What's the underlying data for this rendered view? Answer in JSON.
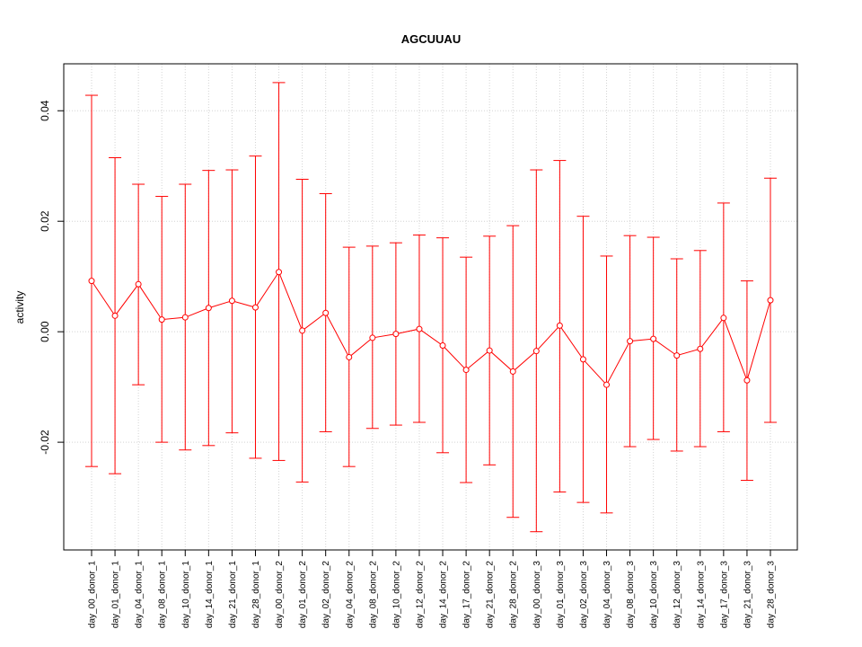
{
  "chart_data": {
    "type": "line",
    "title": "AGCUUAU",
    "xlabel": "",
    "ylabel": "activity",
    "ylim": [
      -0.0395,
      0.0485
    ],
    "yticks": [
      -0.02,
      0.0,
      0.02,
      0.04
    ],
    "ytick_labels": [
      "-0.02",
      "0.00",
      "0.02",
      "0.04"
    ],
    "grid": true,
    "legend": "none",
    "colors": {
      "series": "#ff0000",
      "grid": "#d3d3d3",
      "axis": "#000000"
    },
    "categories": [
      "day_00_donor_1",
      "day_01_donor_1",
      "day_04_donor_1",
      "day_08_donor_1",
      "day_10_donor_1",
      "day_14_donor_1",
      "day_21_donor_1",
      "day_28_donor_1",
      "day_00_donor_2",
      "day_01_donor_2",
      "day_02_donor_2",
      "day_04_donor_2",
      "day_08_donor_2",
      "day_10_donor_2",
      "day_12_donor_2",
      "day_14_donor_2",
      "day_17_donor_2",
      "day_21_donor_2",
      "day_28_donor_2",
      "day_00_donor_3",
      "day_01_donor_3",
      "day_02_donor_3",
      "day_04_donor_3",
      "day_08_donor_3",
      "day_10_donor_3",
      "day_12_donor_3",
      "day_14_donor_3",
      "day_17_donor_3",
      "day_21_donor_3",
      "day_28_donor_3"
    ],
    "series": [
      {
        "values": [
          0.0092,
          0.0029,
          0.0086,
          0.0022,
          0.0026,
          0.0043,
          0.0056,
          0.0044,
          0.0108,
          0.0002,
          0.0034,
          -0.0046,
          -0.0011,
          -0.0004,
          0.0005,
          -0.0025,
          -0.0069,
          -0.0034,
          -0.0072,
          -0.0035,
          0.0011,
          -0.005,
          -0.0096,
          -0.0017,
          -0.0013,
          -0.0043,
          -0.0031,
          0.0025,
          -0.0088,
          0.0057
        ],
        "upper": [
          0.0428,
          0.0315,
          0.0267,
          0.0245,
          0.0267,
          0.0292,
          0.0293,
          0.0318,
          0.0451,
          0.0276,
          0.025,
          0.0153,
          0.0155,
          0.0161,
          0.0175,
          0.017,
          0.0135,
          0.0173,
          0.0192,
          0.0293,
          0.031,
          0.0209,
          0.0137,
          0.0174,
          0.0171,
          0.0132,
          0.0147,
          0.0233,
          0.0092,
          0.0278
        ],
        "lower": [
          -0.0244,
          -0.0257,
          -0.0096,
          -0.02,
          -0.0214,
          -0.0206,
          -0.0183,
          -0.0229,
          -0.0233,
          -0.0272,
          -0.0181,
          -0.0244,
          -0.0175,
          -0.0169,
          -0.0164,
          -0.0219,
          -0.0273,
          -0.0241,
          -0.0336,
          -0.0362,
          -0.029,
          -0.0309,
          -0.0328,
          -0.0208,
          -0.0195,
          -0.0216,
          -0.0208,
          -0.0181,
          -0.0269,
          -0.0164
        ]
      }
    ]
  }
}
